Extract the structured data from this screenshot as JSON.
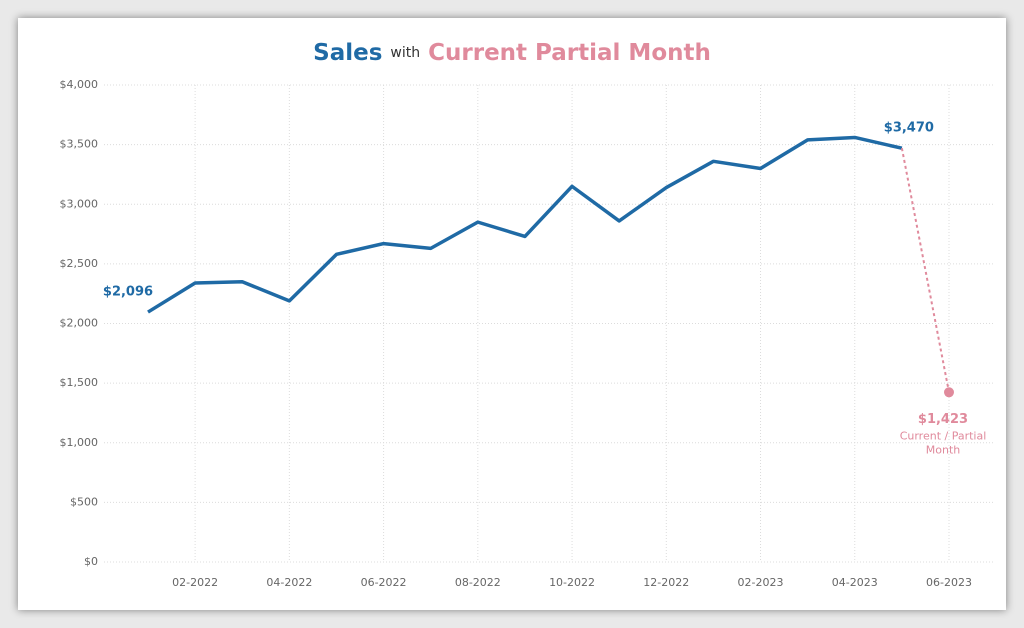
{
  "chart_data": {
    "type": "line",
    "title_connector": "with",
    "categories": [
      null,
      "02-2022",
      null,
      "04-2022",
      null,
      "06-2022",
      null,
      "08-2022",
      null,
      "10-2022",
      null,
      "12-2022",
      null,
      "02-2023",
      null,
      "04-2023",
      null,
      "06-2023"
    ],
    "series": [
      {
        "name": "Sales",
        "color": "#1f6aa5",
        "values": [
          2096,
          2340,
          2350,
          2190,
          2580,
          2670,
          2630,
          2850,
          2730,
          3150,
          2860,
          3140,
          3360,
          3300,
          3540,
          3560,
          3470,
          null
        ],
        "value_labels": [
          "$2,096",
          null,
          null,
          null,
          null,
          null,
          null,
          null,
          null,
          null,
          null,
          null,
          null,
          null,
          null,
          null,
          "$3,470",
          null
        ]
      },
      {
        "name": "Current Partial Month",
        "color": "#e08a9c",
        "dashed": true,
        "values": [
          null,
          null,
          null,
          null,
          null,
          null,
          null,
          null,
          null,
          null,
          null,
          null,
          null,
          null,
          null,
          null,
          3470,
          1423
        ],
        "value_labels": [
          null,
          null,
          null,
          null,
          null,
          null,
          null,
          null,
          null,
          null,
          null,
          null,
          null,
          null,
          null,
          null,
          null,
          "$1,423"
        ]
      }
    ],
    "annotation_lines": [
      "Current / Partial",
      "Month"
    ],
    "ylim": [
      0,
      4000
    ],
    "yticks": [
      {
        "value": 0,
        "label": "$0"
      },
      {
        "value": 500,
        "label": "$500"
      },
      {
        "value": 1000,
        "label": "$1,000"
      },
      {
        "value": 1500,
        "label": "$1,500"
      },
      {
        "value": 2000,
        "label": "$2,000"
      },
      {
        "value": 2500,
        "label": "$2,500"
      },
      {
        "value": 3000,
        "label": "$3,000"
      },
      {
        "value": 3500,
        "label": "$3,500"
      },
      {
        "value": 4000,
        "label": "$4,000"
      }
    ],
    "grid": true
  }
}
